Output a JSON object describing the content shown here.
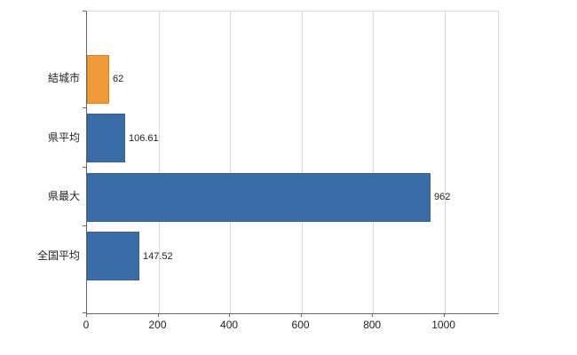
{
  "chart_data": {
    "type": "bar",
    "orientation": "horizontal",
    "title": "",
    "xlabel": "",
    "ylabel": "",
    "categories": [
      "結城市",
      "県平均",
      "県最大",
      "全国平均"
    ],
    "values": [
      62,
      106.61,
      962,
      147.52
    ],
    "value_labels": [
      "62",
      "106.61",
      "962",
      "147.52"
    ],
    "bar_colors": [
      "#ef9a3c",
      "#3c6ca6",
      "#3c6ca6",
      "#3c6ca6"
    ],
    "bar_border_colors": [
      "#d9821f",
      "#34608f",
      "#34608f",
      "#34608f"
    ],
    "xlim": [
      0,
      1150
    ],
    "xticks": [
      0,
      200,
      400,
      600,
      800,
      1000
    ],
    "xtick_labels": [
      "0",
      "200",
      "400",
      "600",
      "800",
      "1000"
    ],
    "grid": true,
    "legend": false
  },
  "colors": {
    "background": "#ffffff",
    "axis": "#666666",
    "gridline": "#d9d9d9",
    "text": "#222222",
    "accent_orange": "#ef9a3c",
    "accent_blue": "#3c6ca6"
  }
}
